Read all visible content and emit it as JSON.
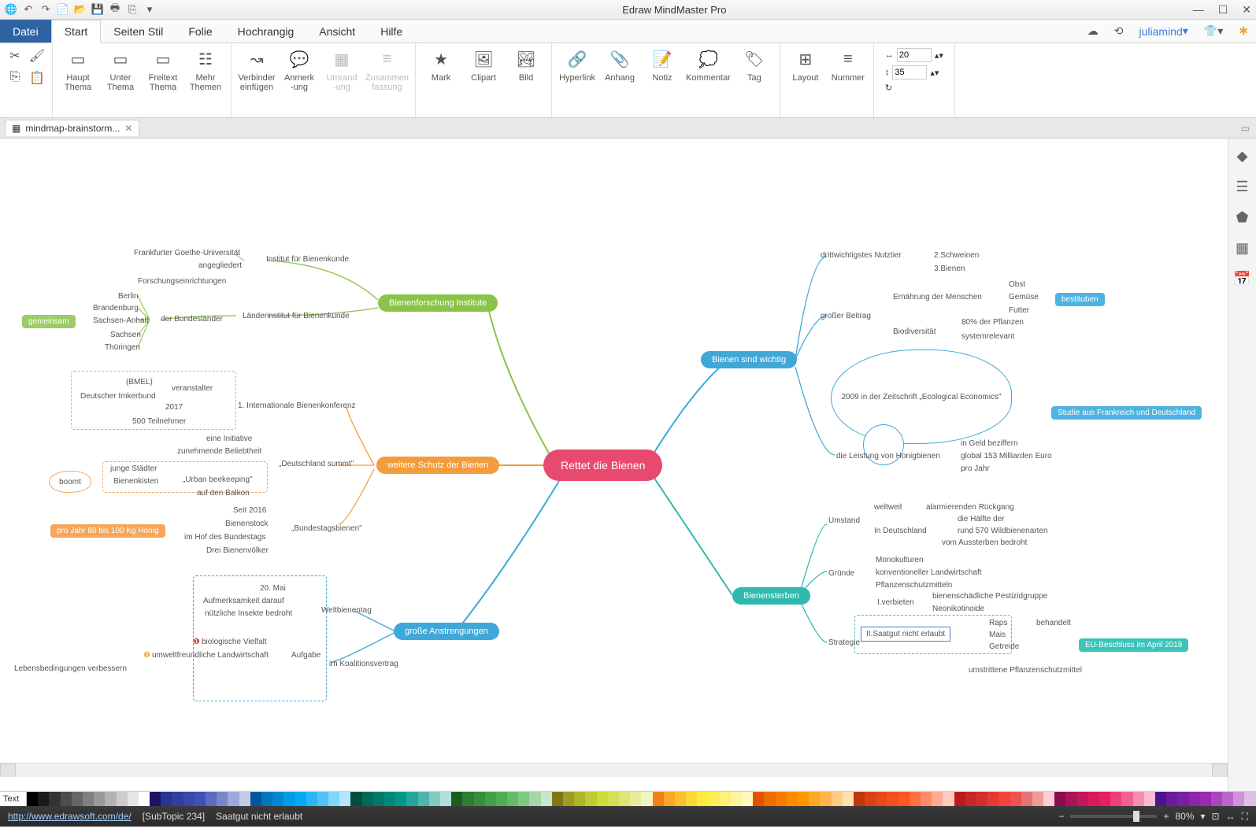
{
  "app_title": "Edraw MindMaster Pro",
  "qat_icons": [
    "globe",
    "undo",
    "redo",
    "new",
    "open",
    "save",
    "print",
    "export",
    "dropdown"
  ],
  "menu": {
    "file": "Datei",
    "items": [
      "Start",
      "Seiten Stil",
      "Folie",
      "Hochrangig",
      "Ansicht",
      "Hilfe"
    ],
    "active": 0,
    "user": "juliamind"
  },
  "ribbon": {
    "clipboard": [
      "cut",
      "brush",
      "copy",
      "paste"
    ],
    "topics": [
      {
        "l1": "Haupt",
        "l2": "Thema"
      },
      {
        "l1": "Unter",
        "l2": "Thema"
      },
      {
        "l1": "Freitext",
        "l2": "Thema"
      },
      {
        "l1": "Mehr",
        "l2": "Themen"
      }
    ],
    "insert": [
      {
        "l1": "Verbinder",
        "l2": "einfügen"
      },
      {
        "l1": "Anmerk",
        "l2": "-ung"
      },
      {
        "l1": "Umrand",
        "l2": "-ung",
        "dis": true
      },
      {
        "l1": "Zusammen",
        "l2": "fassung",
        "dis": true
      }
    ],
    "media": [
      {
        "l": "Mark"
      },
      {
        "l": "Clipart"
      },
      {
        "l": "Bild"
      }
    ],
    "attach": [
      {
        "l": "Hyperlink"
      },
      {
        "l": "Anhang"
      },
      {
        "l": "Notiz"
      },
      {
        "l": "Kommentar"
      },
      {
        "l": "Tag"
      }
    ],
    "layout": [
      {
        "l": "Layout"
      },
      {
        "l": "Nummer"
      }
    ],
    "width": "20",
    "height": "35"
  },
  "doctab": "mindmap-brainstorm...",
  "central": "Rettet die Bienen",
  "main_topics": {
    "t1": "Bienenforschung Institute",
    "t2": "weitere Schutz der Bienen",
    "t3": "große Anstrengungen",
    "t4": "Bienen sind wichtig",
    "t5": "Bienensterben"
  },
  "leaves": {
    "l1": "Frankfurter Goethe-Universität",
    "l2": "angegliedert",
    "l3": "Institut für Bienenkunde",
    "l4": "Forschungseinrichtungen",
    "l5": "Länderinstitut für Bienenkunde",
    "l6": "der Bundesländer",
    "l7": "Berlin",
    "l8": "Brandenburg",
    "l9": "Sachsen-Anhalt",
    "l10": "Sachsen",
    "l11": "Thüringen",
    "l12": "gemeinsam",
    "l13": "(BMEL)",
    "l14": "Deutscher Imkerbund",
    "l15": "veranstalter",
    "l16": "1. Internationale Bienenkonferenz",
    "l17": "2017",
    "l18": "500 Teilnehmer",
    "l19": "eine Initiative",
    "l20": "zunehmende Beliebtheit",
    "l21": "„Deutschland summt\"",
    "l22": "junge Städter",
    "l23": "Bienenkisten",
    "l24": "auf den Balkon",
    "l25": "„Urban beekeeping\"",
    "l26": "boomt",
    "l27": "Seit 2016",
    "l28": "Bienenstock",
    "l29": "im Hof des Bundestags",
    "l30": "Drei Bienenvölker",
    "l31": "„Bundestagsbienen\"",
    "l32": "pro Jahr 80 bis 100 Kg Honig",
    "l33": "20. Mai",
    "l34": "Aufmerksamkeit darauf",
    "l35": "nützliche Insekte bedroht",
    "l36": "Weltbienentag",
    "l37": "biologische Vielfalt",
    "l38": "umweltfreundliche Landwirtschaft",
    "l39": "Aufgabe",
    "l40": "im Koalitionsvertrag",
    "l41": "Lebensbedingungen verbessern",
    "l42": "drittwichtigstes Nutztier",
    "l43": "2.Schweinen",
    "l44": "3.Bienen",
    "l45": "großer Beitrag",
    "l46": "Ernährung der Menschen",
    "l47": "Obst",
    "l48": "Gemüse",
    "l49": "Futter",
    "l50": "bestäuben",
    "l51": "Biodiversität",
    "l52": "80% der Pflanzen",
    "l53": "systemrelevant",
    "l54": "2009 in der Zeitschrift „Ecological Economics\"",
    "l55": "Studie aus Frankreich und Deutschland",
    "l56": "die Leistung von Honigbienen",
    "l57": "in Geld beziffern",
    "l58": "global 153 Milliarden Euro",
    "l59": "pro Jahr",
    "l60": "Umstand",
    "l61": "weltweit",
    "l62": "alarmierenden Rückgang",
    "l63": "In Deutschland",
    "l64": "die Hälfte der",
    "l65": "rund 570 Wildbienenarten",
    "l66": "vom Aussterben bedroht",
    "l67": "Gründe",
    "l68": "Monokulturen",
    "l69": "konventioneller Landwirtschaft",
    "l70": "Pflanzenschutzmitteln",
    "l71": "Strategie",
    "l72": "I.verbieten",
    "l73": "bienenschädliche Pestizidgruppe",
    "l74": "Neonikotinoide",
    "l75": "II.Saatgut nicht erlaubt",
    "l76": "Raps",
    "l77": "Mais",
    "l78": "Getreide",
    "l79": "behandelt",
    "l80": "EU-Beschluss im April 2018",
    "l81": "umstrittene Pflanzenschutzmittel"
  },
  "status": {
    "url": "http://www.edrawsoft.com/de/",
    "subtopic": "[SubTopic 234]",
    "sel": "Saatgut nicht erlaubt",
    "zoom": "80%"
  },
  "colorstrip_label": "Text",
  "colors": [
    "#000000",
    "#1a1a1a",
    "#333333",
    "#4d4d4d",
    "#666666",
    "#808080",
    "#999999",
    "#b3b3b3",
    "#cccccc",
    "#e6e6e6",
    "#ffffff",
    "#1b1464",
    "#283593",
    "#303f9f",
    "#3949ab",
    "#3f51b5",
    "#5c6bc0",
    "#7986cb",
    "#9fa8da",
    "#c5cae9",
    "#01579b",
    "#0277bd",
    "#0288d1",
    "#039be5",
    "#03a9f4",
    "#29b6f6",
    "#4fc3f7",
    "#81d4fa",
    "#b3e5fc",
    "#004d40",
    "#00695c",
    "#00796b",
    "#00897b",
    "#009688",
    "#26a69a",
    "#4db6ac",
    "#80cbc4",
    "#b2dfdb",
    "#1b5e20",
    "#2e7d32",
    "#388e3c",
    "#43a047",
    "#4caf50",
    "#66bb6a",
    "#81c784",
    "#a5d6a7",
    "#c8e6c9",
    "#827717",
    "#9e9d24",
    "#afb42b",
    "#c0ca33",
    "#cddc39",
    "#d4e157",
    "#dce775",
    "#e6ee9c",
    "#f0f4c3",
    "#f57f17",
    "#f9a825",
    "#fbc02d",
    "#fdd835",
    "#ffeb3b",
    "#ffee58",
    "#fff176",
    "#fff59d",
    "#fff9c4",
    "#e65100",
    "#ef6c00",
    "#f57c00",
    "#fb8c00",
    "#ff9800",
    "#ffa726",
    "#ffb74d",
    "#ffcc80",
    "#ffe0b2",
    "#bf360c",
    "#d84315",
    "#e64a19",
    "#f4511e",
    "#ff5722",
    "#ff7043",
    "#ff8a65",
    "#ffab91",
    "#ffccbc",
    "#b71c1c",
    "#c62828",
    "#d32f2f",
    "#e53935",
    "#f44336",
    "#ef5350",
    "#e57373",
    "#ef9a9a",
    "#ffcdd2",
    "#880e4f",
    "#ad1457",
    "#c2185b",
    "#d81b60",
    "#e91e63",
    "#ec407a",
    "#f06292",
    "#f48fb1",
    "#f8bbd0",
    "#4a148c",
    "#6a1b9a",
    "#7b1fa2",
    "#8e24aa",
    "#9c27b0",
    "#ab47bc",
    "#ba68c8",
    "#ce93d8",
    "#e1bee7"
  ]
}
